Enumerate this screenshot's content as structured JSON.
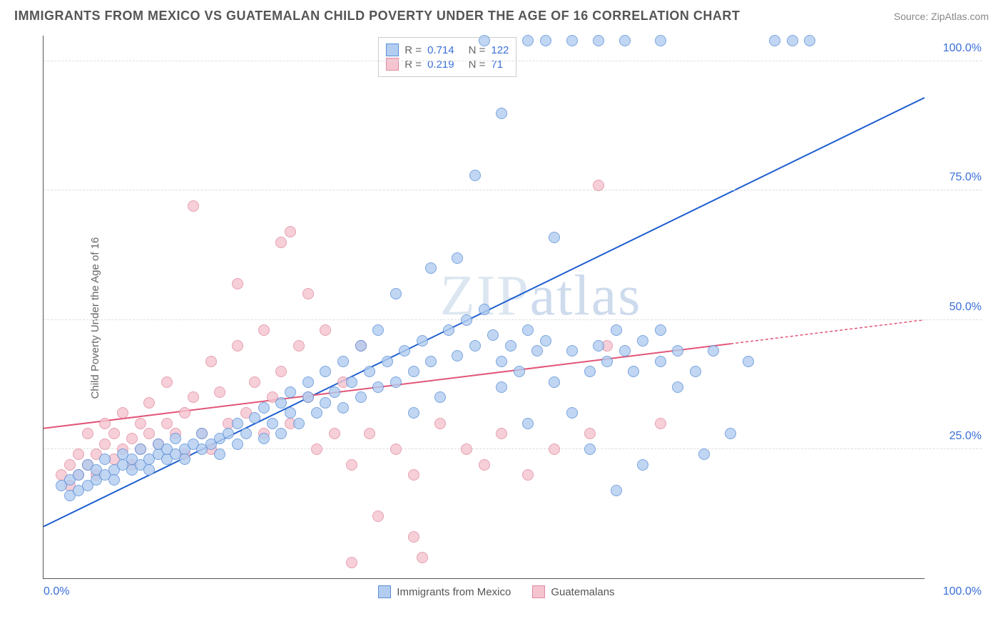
{
  "header": {
    "title": "IMMIGRANTS FROM MEXICO VS GUATEMALAN CHILD POVERTY UNDER THE AGE OF 16 CORRELATION CHART",
    "source": "Source: ZipAtlas.com"
  },
  "chart": {
    "type": "scatter",
    "ylabel": "Child Poverty Under the Age of 16",
    "xlim": [
      0,
      100
    ],
    "ylim": [
      0,
      105
    ],
    "yticks": [
      25,
      50,
      75,
      100
    ],
    "ytick_labels": [
      "25.0%",
      "50.0%",
      "75.0%",
      "100.0%"
    ],
    "xtick_labels": {
      "left": "0.0%",
      "right": "100.0%"
    },
    "background_color": "#ffffff",
    "grid_color": "#dddddd",
    "marker_size": 16,
    "watermark": "ZIPatlas",
    "series": [
      {
        "name": "Immigrants from Mexico",
        "fill": "#b2cdf0",
        "stroke": "#5a8fd8",
        "line_color": "#1f5fd0",
        "R": "0.714",
        "N": "122",
        "trend": {
          "x1": 0,
          "y1": 10,
          "x2": 100,
          "y2": 93,
          "dash_from_x": 100
        },
        "points": [
          [
            2,
            18
          ],
          [
            3,
            19
          ],
          [
            3,
            16
          ],
          [
            4,
            20
          ],
          [
            4,
            17
          ],
          [
            5,
            18
          ],
          [
            5,
            22
          ],
          [
            6,
            19
          ],
          [
            6,
            21
          ],
          [
            7,
            20
          ],
          [
            7,
            23
          ],
          [
            8,
            21
          ],
          [
            8,
            19
          ],
          [
            9,
            22
          ],
          [
            9,
            24
          ],
          [
            10,
            21
          ],
          [
            10,
            23
          ],
          [
            11,
            22
          ],
          [
            11,
            25
          ],
          [
            12,
            23
          ],
          [
            12,
            21
          ],
          [
            13,
            24
          ],
          [
            13,
            26
          ],
          [
            14,
            23
          ],
          [
            14,
            25
          ],
          [
            15,
            24
          ],
          [
            15,
            27
          ],
          [
            16,
            25
          ],
          [
            16,
            23
          ],
          [
            17,
            26
          ],
          [
            18,
            25
          ],
          [
            18,
            28
          ],
          [
            19,
            26
          ],
          [
            20,
            27
          ],
          [
            20,
            24
          ],
          [
            21,
            28
          ],
          [
            22,
            26
          ],
          [
            22,
            30
          ],
          [
            23,
            28
          ],
          [
            24,
            31
          ],
          [
            25,
            27
          ],
          [
            25,
            33
          ],
          [
            26,
            30
          ],
          [
            27,
            28
          ],
          [
            27,
            34
          ],
          [
            28,
            32
          ],
          [
            28,
            36
          ],
          [
            29,
            30
          ],
          [
            30,
            35
          ],
          [
            30,
            38
          ],
          [
            31,
            32
          ],
          [
            32,
            34
          ],
          [
            32,
            40
          ],
          [
            33,
            36
          ],
          [
            34,
            33
          ],
          [
            34,
            42
          ],
          [
            35,
            38
          ],
          [
            36,
            35
          ],
          [
            36,
            45
          ],
          [
            37,
            40
          ],
          [
            38,
            37
          ],
          [
            38,
            48
          ],
          [
            39,
            42
          ],
          [
            40,
            38
          ],
          [
            40,
            55
          ],
          [
            41,
            44
          ],
          [
            42,
            40
          ],
          [
            42,
            32
          ],
          [
            43,
            46
          ],
          [
            44,
            42
          ],
          [
            44,
            60
          ],
          [
            45,
            35
          ],
          [
            46,
            48
          ],
          [
            47,
            43
          ],
          [
            47,
            62
          ],
          [
            48,
            50
          ],
          [
            49,
            45
          ],
          [
            49,
            78
          ],
          [
            50,
            52
          ],
          [
            51,
            47
          ],
          [
            52,
            37
          ],
          [
            52,
            42
          ],
          [
            53,
            45
          ],
          [
            54,
            40
          ],
          [
            55,
            48
          ],
          [
            55,
            30
          ],
          [
            56,
            44
          ],
          [
            57,
            46
          ],
          [
            58,
            38
          ],
          [
            58,
            66
          ],
          [
            60,
            32
          ],
          [
            60,
            44
          ],
          [
            62,
            40
          ],
          [
            62,
            25
          ],
          [
            63,
            45
          ],
          [
            64,
            42
          ],
          [
            65,
            48
          ],
          [
            65,
            17
          ],
          [
            66,
            44
          ],
          [
            67,
            40
          ],
          [
            68,
            46
          ],
          [
            68,
            22
          ],
          [
            70,
            48
          ],
          [
            70,
            42
          ],
          [
            72,
            44
          ],
          [
            72,
            37
          ],
          [
            74,
            40
          ],
          [
            75,
            24
          ],
          [
            76,
            44
          ],
          [
            78,
            28
          ],
          [
            80,
            42
          ],
          [
            83,
            104
          ],
          [
            85,
            104
          ],
          [
            87,
            104
          ],
          [
            50,
            104
          ],
          [
            55,
            104
          ],
          [
            57,
            104
          ],
          [
            60,
            104
          ],
          [
            63,
            104
          ],
          [
            66,
            104
          ],
          [
            70,
            104
          ],
          [
            52,
            90
          ]
        ]
      },
      {
        "name": "Guatemalans",
        "fill": "#f5c4cf",
        "stroke": "#e08aa0",
        "line_color": "#e25578",
        "R": "0.219",
        "N": "71",
        "trend": {
          "x1": 0,
          "y1": 29,
          "x2": 100,
          "y2": 50,
          "dash_from_x": 78
        },
        "points": [
          [
            2,
            20
          ],
          [
            3,
            22
          ],
          [
            3,
            18
          ],
          [
            4,
            24
          ],
          [
            4,
            20
          ],
          [
            5,
            22
          ],
          [
            5,
            28
          ],
          [
            6,
            24
          ],
          [
            6,
            20
          ],
          [
            7,
            26
          ],
          [
            7,
            30
          ],
          [
            8,
            23
          ],
          [
            8,
            28
          ],
          [
            9,
            25
          ],
          [
            9,
            32
          ],
          [
            10,
            27
          ],
          [
            10,
            22
          ],
          [
            11,
            30
          ],
          [
            11,
            25
          ],
          [
            12,
            28
          ],
          [
            12,
            34
          ],
          [
            13,
            26
          ],
          [
            14,
            30
          ],
          [
            14,
            38
          ],
          [
            15,
            28
          ],
          [
            16,
            32
          ],
          [
            16,
            24
          ],
          [
            17,
            35
          ],
          [
            17,
            72
          ],
          [
            18,
            28
          ],
          [
            19,
            42
          ],
          [
            19,
            25
          ],
          [
            20,
            36
          ],
          [
            21,
            30
          ],
          [
            22,
            45
          ],
          [
            22,
            57
          ],
          [
            23,
            32
          ],
          [
            24,
            38
          ],
          [
            25,
            28
          ],
          [
            25,
            48
          ],
          [
            26,
            35
          ],
          [
            27,
            40
          ],
          [
            27,
            65
          ],
          [
            28,
            30
          ],
          [
            28,
            67
          ],
          [
            29,
            45
          ],
          [
            30,
            35
          ],
          [
            30,
            55
          ],
          [
            31,
            25
          ],
          [
            32,
            48
          ],
          [
            33,
            28
          ],
          [
            34,
            38
          ],
          [
            35,
            22
          ],
          [
            36,
            45
          ],
          [
            37,
            28
          ],
          [
            38,
            12
          ],
          [
            40,
            25
          ],
          [
            42,
            20
          ],
          [
            42,
            8
          ],
          [
            43,
            4
          ],
          [
            35,
            3
          ],
          [
            45,
            30
          ],
          [
            48,
            25
          ],
          [
            50,
            22
          ],
          [
            52,
            28
          ],
          [
            55,
            20
          ],
          [
            58,
            25
          ],
          [
            62,
            28
          ],
          [
            63,
            76
          ],
          [
            70,
            30
          ],
          [
            64,
            45
          ]
        ]
      }
    ],
    "legend_labels": [
      "Immigrants from Mexico",
      "Guatemalans"
    ]
  }
}
